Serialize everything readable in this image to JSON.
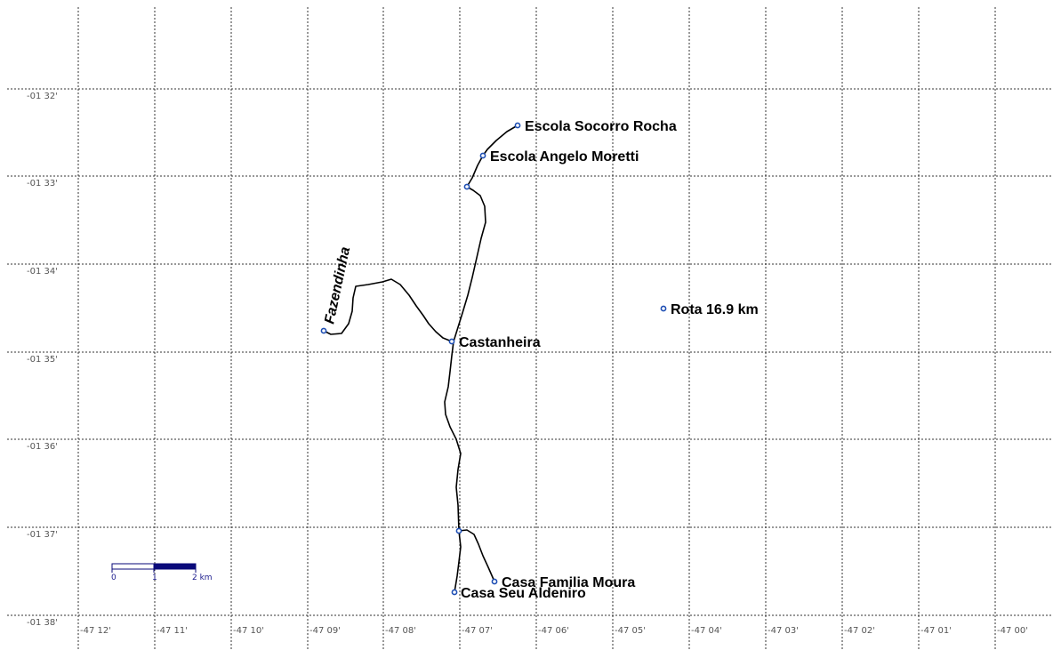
{
  "map": {
    "latitude_labels": [
      "-01 32'",
      "-01 33'",
      "-01 34'",
      "-01 35'",
      "-01 36'",
      "-01 37'",
      "-01 38'"
    ],
    "longitude_labels": [
      "-47 12'",
      "-47 11'",
      "-47 10'",
      "-47 09'",
      "-47 08'",
      "-47 07'",
      "-47 06'",
      "-47 05'",
      "-47 04'",
      "-47 03'",
      "-47 02'",
      "-47 01'",
      "-47 00'"
    ],
    "waypoints": {
      "escola_socorro_rocha": "Escola Socorro Rocha",
      "escola_angelo_moretti": "Escola Angelo Moretti",
      "fazendinha": "Fazendinha",
      "castanheira": "Castanheira",
      "rota": "Rota 16.9 km",
      "casa_familia_moura": "Casa Familia Moura",
      "casa_seu_aldeniro": "Casa Seu Aldeniro"
    },
    "scale_bar": {
      "labels": [
        "0",
        "1",
        "2 km"
      ]
    },
    "colors": {
      "grid": "#333333",
      "route": "#000000",
      "waypoint": "#1f4fb4",
      "scale_fill": "#0a0a7a"
    }
  }
}
